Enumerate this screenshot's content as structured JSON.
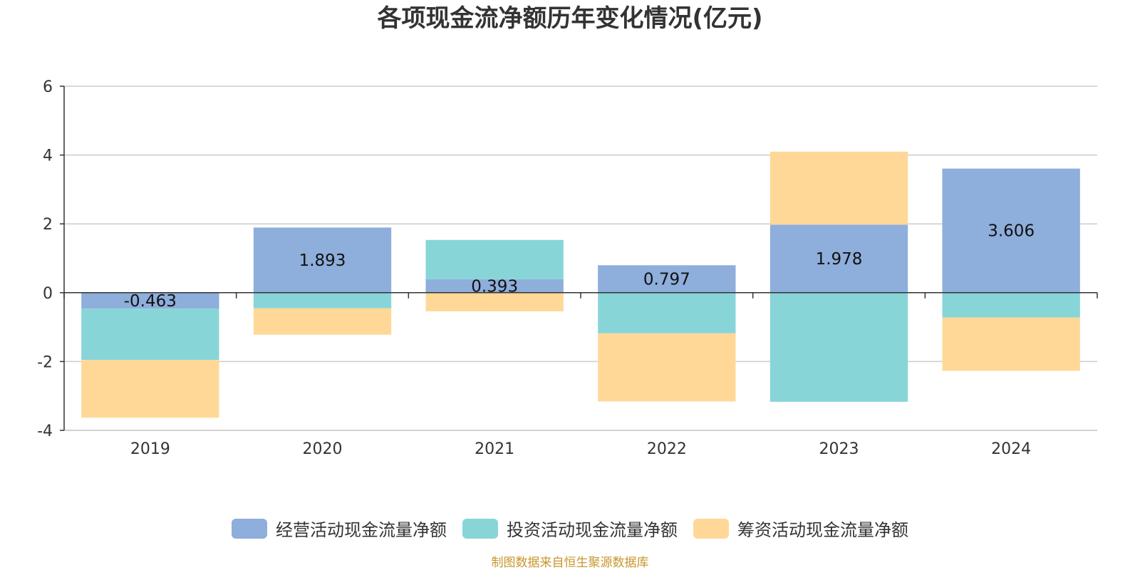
{
  "chart_data": {
    "type": "bar",
    "stacked": true,
    "title": "各项现金流净额历年变化情况(亿元)",
    "categories": [
      "2019",
      "2020",
      "2021",
      "2022",
      "2023",
      "2024"
    ],
    "ylim": [
      -4,
      6
    ],
    "yticks": [
      -4,
      -2,
      0,
      2,
      4,
      6
    ],
    "grid": true,
    "legend_position": "bottom",
    "series": [
      {
        "name": "经营活动现金流量净额",
        "color": "#8eaedb",
        "values": [
          -0.463,
          1.893,
          0.393,
          0.797,
          1.978,
          3.606
        ],
        "labels": [
          "-0.463",
          "1.893",
          "0.393",
          "0.797",
          "1.978",
          "3.606"
        ]
      },
      {
        "name": "投资活动现金流量净额",
        "color": "#88d5d8",
        "values": [
          -1.49,
          -0.45,
          1.14,
          -1.18,
          -3.17,
          -0.72
        ]
      },
      {
        "name": "筹资活动现金流量净额",
        "color": "#ffd898",
        "values": [
          -1.68,
          -0.77,
          -0.54,
          -1.98,
          2.12,
          -1.55
        ]
      }
    ]
  },
  "footer": {
    "source": "制图数据来自恒生聚源数据库"
  }
}
